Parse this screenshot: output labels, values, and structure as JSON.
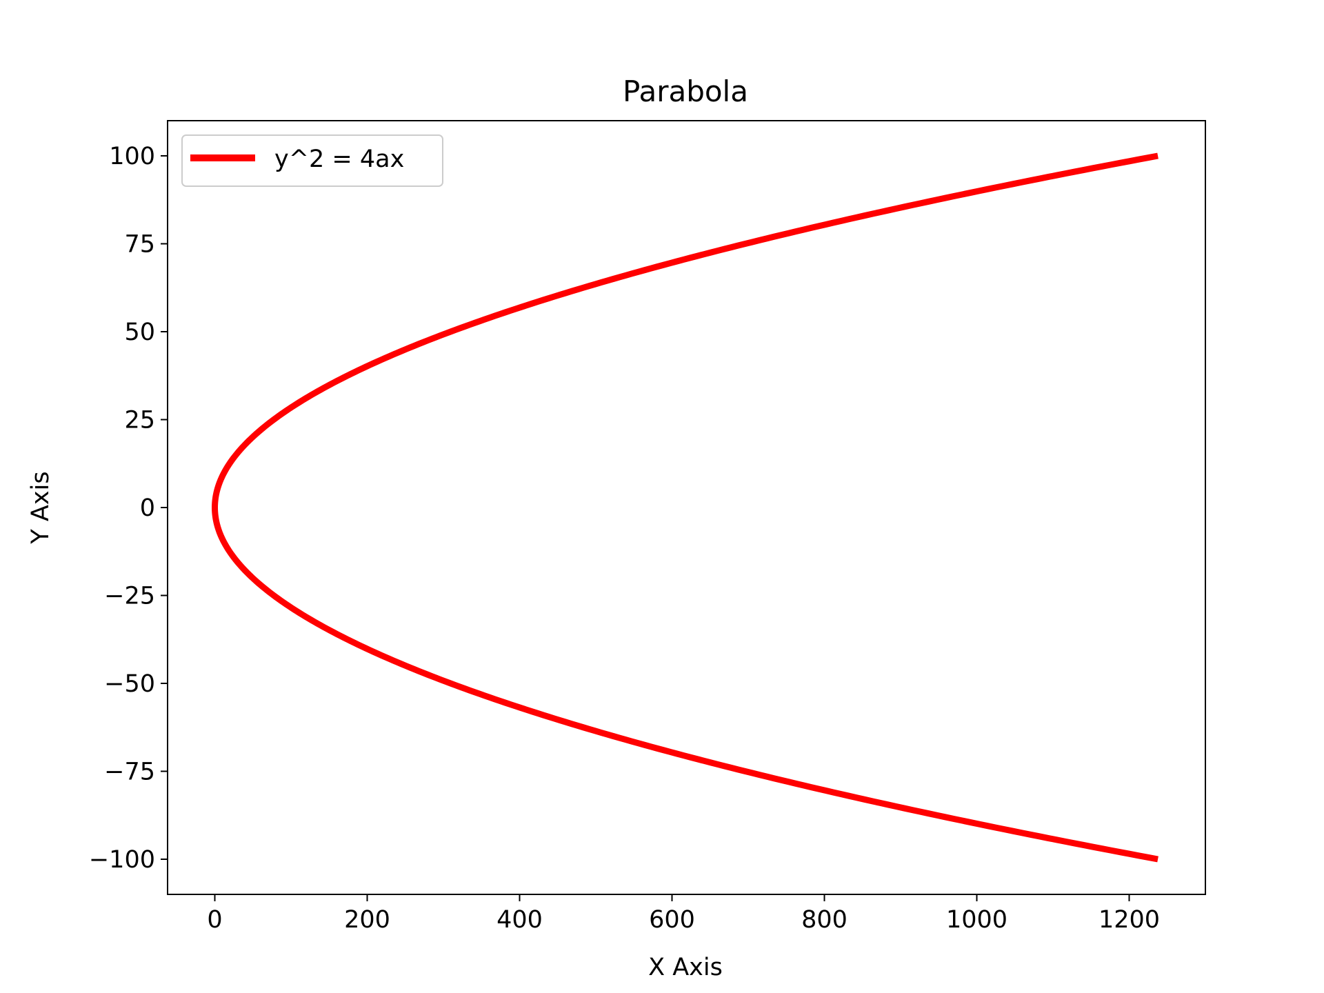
{
  "chart_data": {
    "type": "line",
    "title": "Parabola",
    "xlabel": "X Axis",
    "ylabel": "Y Axis",
    "xlim": [
      -62,
      1300
    ],
    "ylim": [
      -110,
      110
    ],
    "xticks": [
      0,
      200,
      400,
      600,
      800,
      1000,
      1200
    ],
    "yticks": [
      100,
      75,
      50,
      25,
      0,
      -25,
      -50,
      -75,
      -100
    ],
    "xtick_labels": [
      "0",
      "200",
      "400",
      "600",
      "800",
      "1000",
      "1200"
    ],
    "ytick_labels": [
      "100",
      "75",
      "50",
      "25",
      "0",
      "−25",
      "−50",
      "−75",
      "−100"
    ],
    "grid": false,
    "legend_position": "upper-left",
    "series": [
      {
        "name": "y^2 = 4ax",
        "color": "#ff0000",
        "a": 2.02,
        "y_range": [
          -100,
          100
        ]
      }
    ]
  }
}
